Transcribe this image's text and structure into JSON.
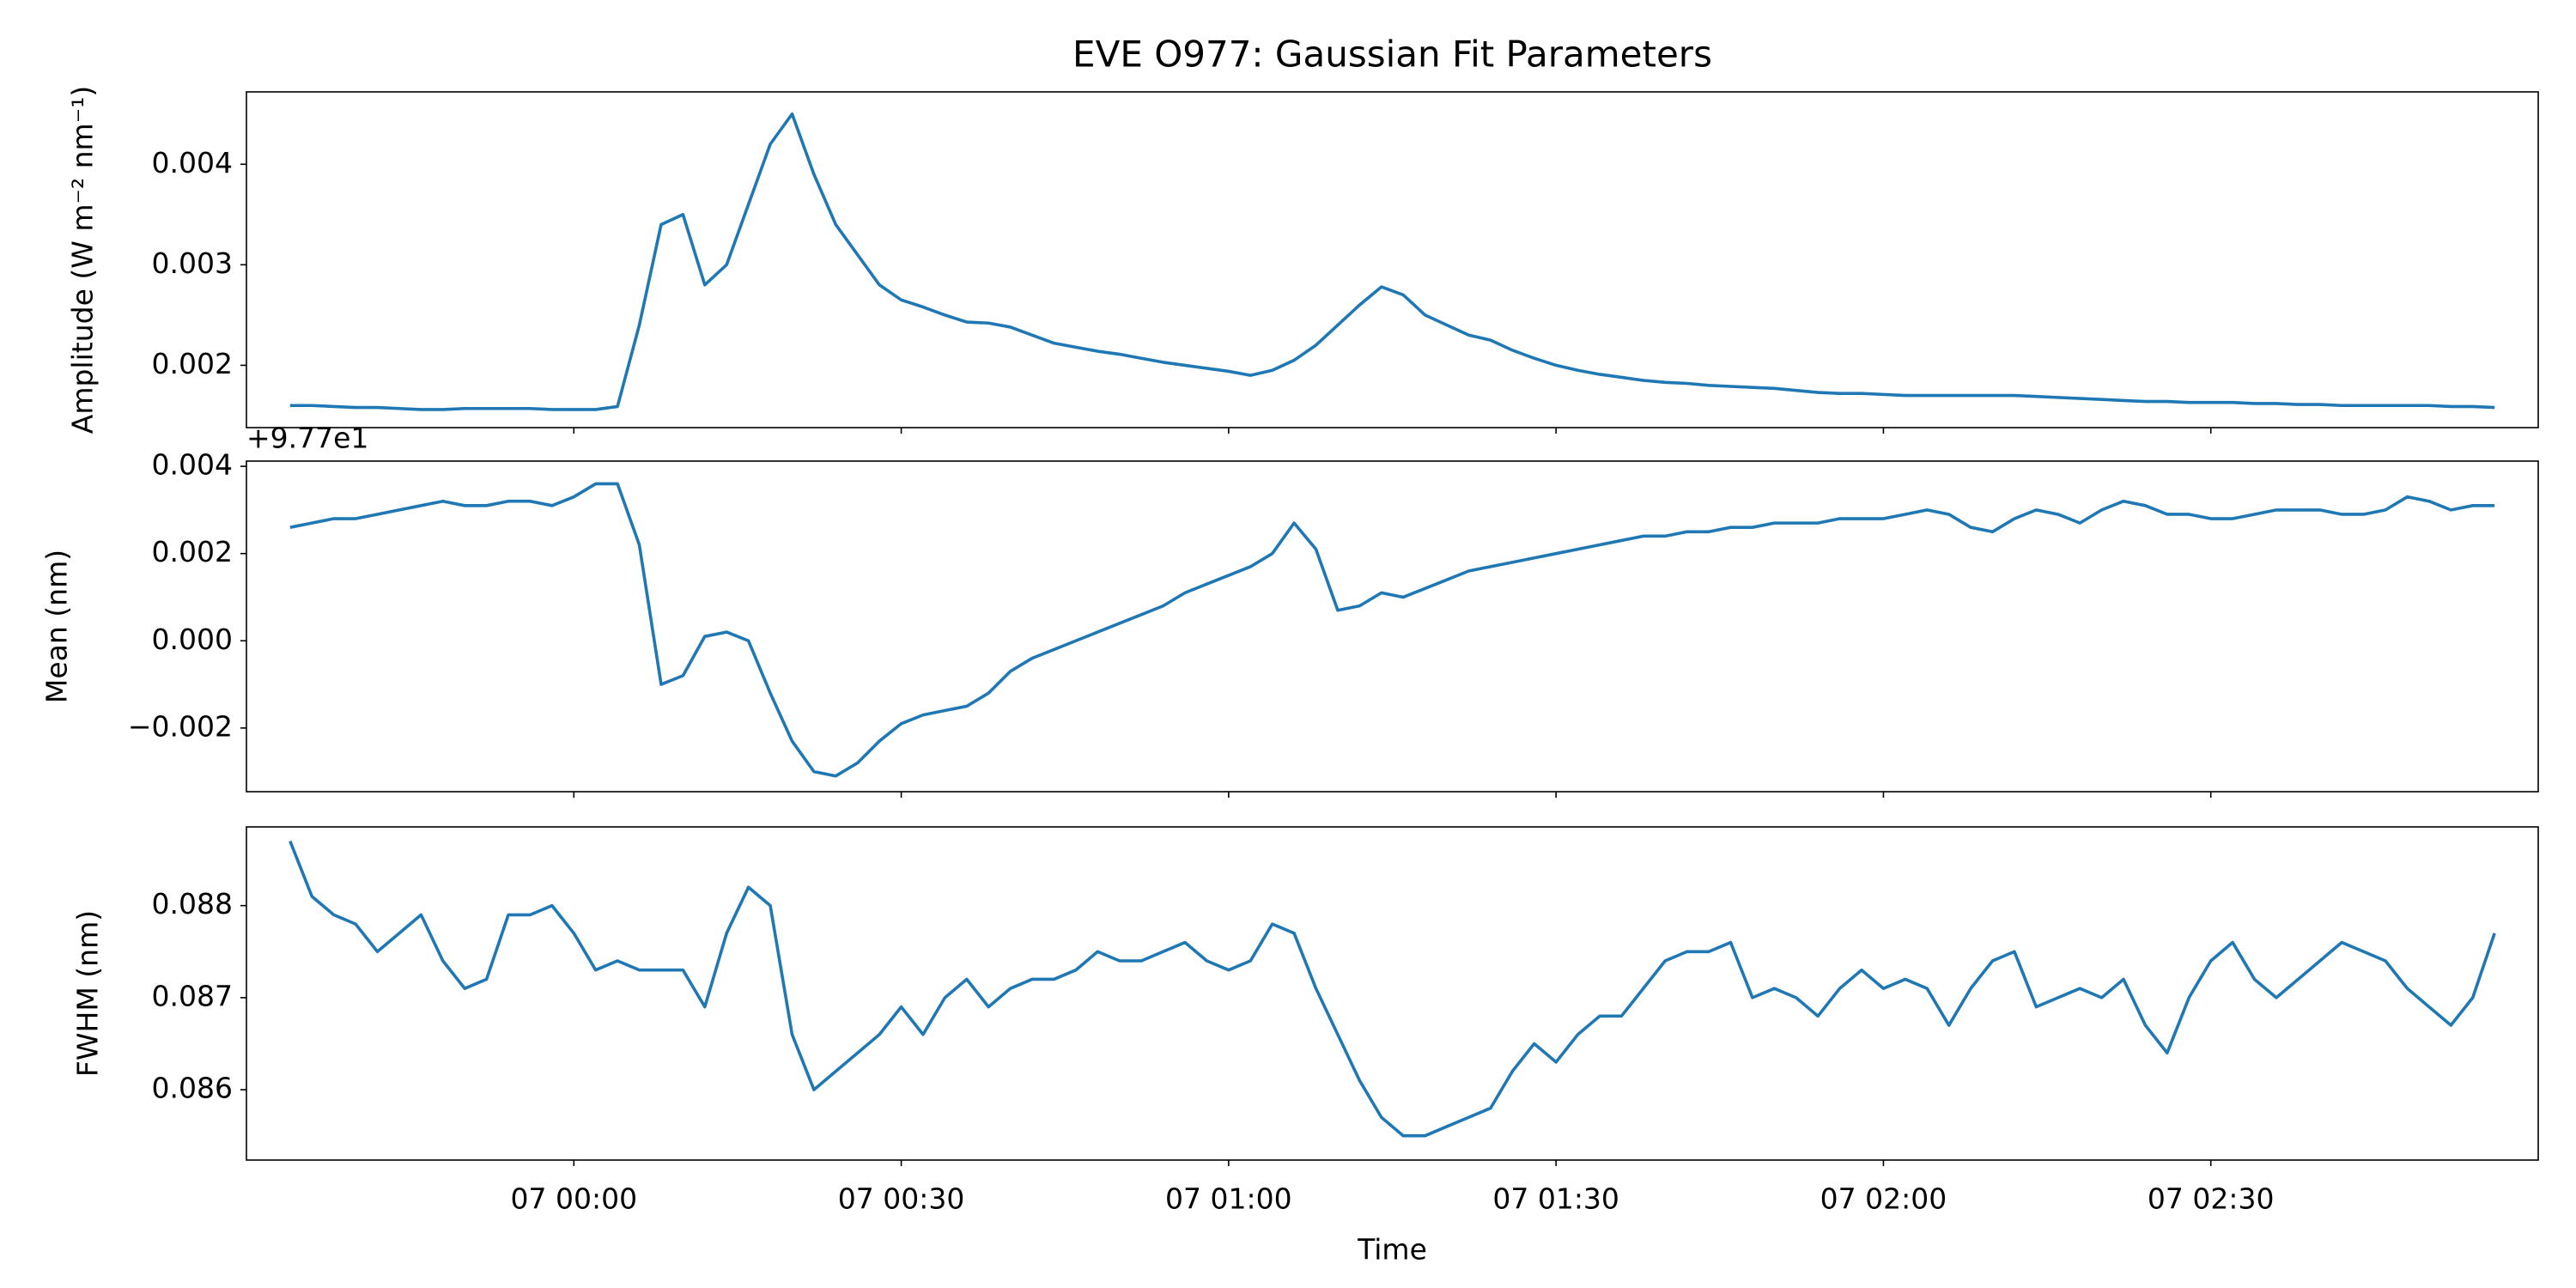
{
  "chart_data": [
    {
      "type": "line",
      "title": "EVE O977: Gaussian Fit Parameters",
      "ylabel": "Amplitude (W m⁻² nm⁻¹)",
      "color": "#1f77b4",
      "x": [
        -26,
        -24,
        -22,
        -20,
        -18,
        -16,
        -14,
        -12,
        -10,
        -8,
        -6,
        -4,
        -2,
        0,
        2,
        4,
        6,
        8,
        10,
        12,
        14,
        16,
        18,
        20,
        22,
        24,
        26,
        28,
        30,
        32,
        34,
        36,
        38,
        40,
        42,
        44,
        46,
        48,
        50,
        52,
        54,
        56,
        58,
        60,
        62,
        64,
        66,
        68,
        70,
        72,
        74,
        76,
        78,
        80,
        82,
        84,
        86,
        88,
        90,
        92,
        94,
        96,
        98,
        100,
        102,
        104,
        106,
        108,
        110,
        112,
        114,
        116,
        118,
        120,
        122,
        124,
        126,
        128,
        130,
        132,
        134,
        136,
        138,
        140,
        142,
        144,
        146,
        148,
        150,
        152,
        154,
        156,
        158,
        160,
        162,
        164,
        166,
        168,
        170,
        172,
        174,
        176
      ],
      "values": [
        0.0016,
        0.0016,
        0.00159,
        0.00158,
        0.00158,
        0.00157,
        0.00156,
        0.00156,
        0.00157,
        0.00157,
        0.00157,
        0.00157,
        0.00156,
        0.00156,
        0.00156,
        0.00159,
        0.0024,
        0.0034,
        0.0035,
        0.0028,
        0.003,
        0.0036,
        0.0042,
        0.0045,
        0.0039,
        0.0034,
        0.0031,
        0.0028,
        0.00265,
        0.00258,
        0.0025,
        0.00243,
        0.00242,
        0.00238,
        0.0023,
        0.00222,
        0.00218,
        0.00214,
        0.00211,
        0.00207,
        0.00203,
        0.002,
        0.00197,
        0.00194,
        0.0019,
        0.00195,
        0.00205,
        0.0022,
        0.0024,
        0.0026,
        0.00278,
        0.0027,
        0.0025,
        0.0024,
        0.0023,
        0.00225,
        0.00215,
        0.00207,
        0.002,
        0.00195,
        0.00191,
        0.00188,
        0.00185,
        0.00183,
        0.00182,
        0.0018,
        0.00179,
        0.00178,
        0.00177,
        0.00175,
        0.00173,
        0.00172,
        0.00172,
        0.00171,
        0.0017,
        0.0017,
        0.0017,
        0.0017,
        0.0017,
        0.0017,
        0.00169,
        0.00168,
        0.00167,
        0.00166,
        0.00165,
        0.00164,
        0.00164,
        0.00163,
        0.00163,
        0.00163,
        0.00162,
        0.00162,
        0.00161,
        0.00161,
        0.0016,
        0.0016,
        0.0016,
        0.0016,
        0.0016,
        0.00159,
        0.00159,
        0.00158
      ],
      "xlim": [
        -30,
        180
      ],
      "xticks": [
        0,
        30,
        60,
        90,
        120,
        150
      ],
      "ylim": [
        0.00138,
        0.00472
      ],
      "yticks": [
        0.002,
        0.003,
        0.004
      ]
    },
    {
      "type": "line",
      "ylabel": "Mean (nm)",
      "offset_text": "+9.77e1",
      "color": "#1f77b4",
      "x": [
        -26,
        -24,
        -22,
        -20,
        -18,
        -16,
        -14,
        -12,
        -10,
        -8,
        -6,
        -4,
        -2,
        0,
        2,
        4,
        6,
        8,
        10,
        12,
        14,
        16,
        18,
        20,
        22,
        24,
        26,
        28,
        30,
        32,
        34,
        36,
        38,
        40,
        42,
        44,
        46,
        48,
        50,
        52,
        54,
        56,
        58,
        60,
        62,
        64,
        66,
        68,
        70,
        72,
        74,
        76,
        78,
        80,
        82,
        84,
        86,
        88,
        90,
        92,
        94,
        96,
        98,
        100,
        102,
        104,
        106,
        108,
        110,
        112,
        114,
        116,
        118,
        120,
        122,
        124,
        126,
        128,
        130,
        132,
        134,
        136,
        138,
        140,
        142,
        144,
        146,
        148,
        150,
        152,
        154,
        156,
        158,
        160,
        162,
        164,
        166,
        168,
        170,
        172,
        174,
        176
      ],
      "values": [
        0.0026,
        0.0027,
        0.0028,
        0.0028,
        0.0029,
        0.003,
        0.0031,
        0.0032,
        0.0031,
        0.0031,
        0.0032,
        0.0032,
        0.0031,
        0.0033,
        0.0036,
        0.0036,
        0.0022,
        -0.001,
        -0.0008,
        0.0001,
        0.0002,
        0.0,
        -0.0012,
        -0.0023,
        -0.003,
        -0.0031,
        -0.0028,
        -0.0023,
        -0.0019,
        -0.0017,
        -0.0016,
        -0.0015,
        -0.0012,
        -0.0007,
        -0.0004,
        -0.0002,
        0.0,
        0.0002,
        0.0004,
        0.0006,
        0.0008,
        0.0011,
        0.0013,
        0.0015,
        0.0017,
        0.002,
        0.0027,
        0.0021,
        0.0007,
        0.0008,
        0.0011,
        0.001,
        0.0012,
        0.0014,
        0.0016,
        0.0017,
        0.0018,
        0.0019,
        0.002,
        0.0021,
        0.0022,
        0.0023,
        0.0024,
        0.0024,
        0.0025,
        0.0025,
        0.0026,
        0.0026,
        0.0027,
        0.0027,
        0.0027,
        0.0028,
        0.0028,
        0.0028,
        0.0029,
        0.003,
        0.0029,
        0.0026,
        0.0025,
        0.0028,
        0.003,
        0.0029,
        0.0027,
        0.003,
        0.0032,
        0.0031,
        0.0029,
        0.0029,
        0.0028,
        0.0028,
        0.0029,
        0.003,
        0.003,
        0.003,
        0.0029,
        0.0029,
        0.003,
        0.0033,
        0.0032,
        0.003,
        0.0031,
        0.0031
      ],
      "xlim": [
        -30,
        180
      ],
      "xticks": [
        0,
        30,
        60,
        90,
        120,
        150
      ],
      "ylim": [
        -0.00346,
        0.00412
      ],
      "yticks": [
        {
          "value": -0.002,
          "label": "−0.002"
        },
        {
          "value": 0,
          "label": "0.000"
        },
        0.002,
        0.004
      ]
    },
    {
      "type": "line",
      "ylabel": "FWHM (nm)",
      "xlabel": "Time",
      "color": "#1f77b4",
      "x": [
        -26,
        -24,
        -22,
        -20,
        -18,
        -16,
        -14,
        -12,
        -10,
        -8,
        -6,
        -4,
        -2,
        0,
        2,
        4,
        6,
        8,
        10,
        12,
        14,
        16,
        18,
        20,
        22,
        24,
        26,
        28,
        30,
        32,
        34,
        36,
        38,
        40,
        42,
        44,
        46,
        48,
        50,
        52,
        54,
        56,
        58,
        60,
        62,
        64,
        66,
        68,
        70,
        72,
        74,
        76,
        78,
        80,
        82,
        84,
        86,
        88,
        90,
        92,
        94,
        96,
        98,
        100,
        102,
        104,
        106,
        108,
        110,
        112,
        114,
        116,
        118,
        120,
        122,
        124,
        126,
        128,
        130,
        132,
        134,
        136,
        138,
        140,
        142,
        144,
        146,
        148,
        150,
        152,
        154,
        156,
        158,
        160,
        162,
        164,
        166,
        168,
        170,
        172,
        174,
        176
      ],
      "values": [
        0.0887,
        0.0881,
        0.0879,
        0.0878,
        0.0875,
        0.0877,
        0.0879,
        0.0874,
        0.0871,
        0.0872,
        0.0879,
        0.0879,
        0.088,
        0.0877,
        0.0873,
        0.0874,
        0.0873,
        0.0873,
        0.0873,
        0.0869,
        0.0877,
        0.0882,
        0.088,
        0.0866,
        0.086,
        0.0862,
        0.0864,
        0.0866,
        0.0869,
        0.0866,
        0.087,
        0.0872,
        0.0869,
        0.0871,
        0.0872,
        0.0872,
        0.0873,
        0.0875,
        0.0874,
        0.0874,
        0.0875,
        0.0876,
        0.0874,
        0.0873,
        0.0874,
        0.0878,
        0.0877,
        0.0871,
        0.0866,
        0.0861,
        0.0857,
        0.0855,
        0.0855,
        0.0856,
        0.0857,
        0.0858,
        0.0862,
        0.0865,
        0.0863,
        0.0866,
        0.0868,
        0.0868,
        0.0871,
        0.0874,
        0.0875,
        0.0875,
        0.0876,
        0.087,
        0.0871,
        0.087,
        0.0868,
        0.0871,
        0.0873,
        0.0871,
        0.0872,
        0.0871,
        0.0867,
        0.0871,
        0.0874,
        0.0875,
        0.0869,
        0.087,
        0.0871,
        0.087,
        0.0872,
        0.0867,
        0.0864,
        0.087,
        0.0874,
        0.0876,
        0.0872,
        0.087,
        0.0872,
        0.0874,
        0.0876,
        0.0875,
        0.0874,
        0.0871,
        0.0869,
        0.0867,
        0.087,
        0.0877
      ],
      "xlim": [
        -30,
        180
      ],
      "xticks": [
        {
          "value": 0,
          "label": "07 00:00"
        },
        {
          "value": 30,
          "label": "07 00:30"
        },
        {
          "value": 60,
          "label": "07 01:00"
        },
        {
          "value": 90,
          "label": "07 01:30"
        },
        {
          "value": 120,
          "label": "07 02:00"
        },
        {
          "value": 150,
          "label": "07 02:30"
        }
      ],
      "ylim": [
        0.085236,
        0.088855
      ],
      "yticks": [
        0.086,
        0.087,
        0.088
      ]
    }
  ]
}
